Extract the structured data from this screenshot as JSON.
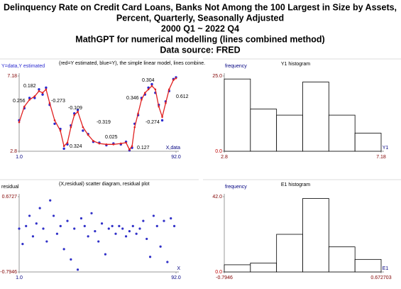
{
  "title": [
    "Delinquency Rate on Credit Card Loans, Banks Not Among the 100 Largest in Size by Assets,",
    "Percent, Quarterly, Seasonally Adjusted",
    "2000 Q1 ~ 2022 Q4",
    "MathGPT for numerical modelling (lines combined method)",
    "Data source: FRED"
  ],
  "chart_data": [
    {
      "type": "line",
      "title": "(red=Y estimated, blue=Y), the simple linear model, lines combine.",
      "ylabel": "Y=data,Y estimated",
      "xlabel": "X,data",
      "x": [
        1,
        4,
        7,
        10,
        12.5,
        14.6,
        16.6,
        18.7,
        21.6,
        24.9,
        27,
        29,
        31,
        33,
        35,
        38,
        41,
        44,
        47.5,
        51.6,
        55.7,
        60,
        63,
        65,
        66.5,
        68,
        70,
        72,
        74,
        76,
        78,
        80,
        82,
        84,
        86,
        88,
        90.5,
        92
      ],
      "series": [
        {
          "color": "#2b2bd0",
          "marker": "points",
          "values": [
            4.6,
            5.3,
            5.9,
            5.9,
            6.4,
            6.1,
            6.5,
            5.5,
            4.4,
            4.1,
            2.95,
            3.2,
            4.3,
            5.0,
            5.2,
            4.0,
            3.8,
            3.35,
            3.3,
            3.15,
            3.25,
            3.2,
            3.35,
            2.85,
            3.0,
            4.4,
            4.9,
            5.9,
            6.1,
            6.5,
            6.7,
            6.2,
            5.5,
            4.6,
            5.7,
            6.3,
            7.0,
            7.1
          ]
        },
        {
          "color": "#e02020",
          "marker": "line",
          "values": [
            4.49,
            5.4,
            5.8,
            6.0,
            6.3,
            6.2,
            6.4,
            5.6,
            4.6,
            4.0,
            3.1,
            3.3,
            4.2,
            4.9,
            5.1,
            4.2,
            3.75,
            3.4,
            3.25,
            3.2,
            3.2,
            3.25,
            3.3,
            2.9,
            3.1,
            4.2,
            5.0,
            5.8,
            6.2,
            6.4,
            6.6,
            6.4,
            5.4,
            4.8,
            5.6,
            6.4,
            6.95,
            7.05
          ]
        }
      ],
      "annotations": [
        "0.256",
        "0.182",
        "-0.273",
        "-0.109",
        "-0.319",
        "0.324",
        "0.025",
        "0.127",
        "0.346",
        "0.304",
        "-0.274",
        "0.612"
      ],
      "xlim": [
        1,
        92
      ],
      "ylim": [
        2.8,
        7.18
      ],
      "xticks": [
        {
          "value": 1,
          "label": "1.0"
        },
        {
          "value": 92,
          "label": "92.0"
        }
      ],
      "yticks": [
        2.8,
        7.18
      ]
    },
    {
      "type": "histogram",
      "title": "Y1 histogram",
      "ylabel": "frequency",
      "xlabel": "Y1",
      "color": "#ffffff",
      "bins": [
        2.8,
        3.53,
        4.26,
        4.99,
        5.72,
        6.45,
        7.18
      ],
      "values": [
        24,
        14,
        12,
        23,
        12,
        6
      ],
      "xlim": [
        2.8,
        7.18
      ],
      "ylim": [
        0,
        25
      ],
      "xticks": [
        2.8,
        7.18
      ],
      "yticks": [
        {
          "value": 0,
          "label": "0.0"
        },
        {
          "value": 25,
          "label": "25.0"
        }
      ]
    },
    {
      "type": "scatter",
      "title": "(X,residual) scatter diagram, residual plot",
      "ylabel": "residual",
      "xlabel": "X",
      "color": "#3030c8",
      "x": [
        1,
        3,
        5,
        7,
        9,
        11,
        13,
        15,
        17,
        19,
        21,
        23,
        25,
        27,
        29,
        31,
        33,
        35,
        37,
        39,
        41,
        43,
        45,
        47,
        49,
        51,
        53,
        55,
        57,
        59,
        61,
        63,
        65,
        67,
        69,
        71,
        73,
        75,
        77,
        79,
        81,
        83,
        85,
        87,
        89,
        91
      ],
      "values": [
        0.05,
        -0.25,
        0.1,
        0.3,
        -0.1,
        0.15,
        0.45,
        0.05,
        -0.2,
        0.6,
        0.3,
        -0.05,
        0.1,
        -0.35,
        0.2,
        -0.55,
        0.05,
        -0.75,
        0.25,
        0.1,
        -0.1,
        0.35,
        0.0,
        -0.2,
        0.15,
        -0.45,
        0.05,
        0.1,
        -0.05,
        0.1,
        0.05,
        -0.1,
        0.0,
        0.1,
        -0.05,
        0.05,
        0.2,
        -0.15,
        -0.5,
        0.3,
        0.1,
        -0.3,
        0.2,
        -0.6,
        0.25,
        0.1
      ],
      "xlim": [
        1,
        92
      ],
      "ylim": [
        -0.7946,
        0.6727
      ],
      "xticks": [
        {
          "value": 1,
          "label": "1.0"
        },
        {
          "value": 92,
          "label": "92.0"
        }
      ],
      "yticks": [
        -0.7946,
        0.6727
      ]
    },
    {
      "type": "histogram",
      "title": "E1 histogram",
      "ylabel": "frequency",
      "xlabel": "E1",
      "color": "#ffffff",
      "bins": [
        -0.7946,
        -0.55,
        -0.3055,
        -0.0609,
        0.1836,
        0.4282,
        0.672703
      ],
      "values": [
        4,
        5,
        21,
        41,
        14,
        7
      ],
      "xlim": [
        -0.7946,
        0.672703
      ],
      "ylim": [
        0,
        42
      ],
      "xticks": [
        -0.7946,
        0.672703
      ],
      "yticks": [
        {
          "value": 0,
          "label": "0.0"
        },
        {
          "value": 42,
          "label": "42.0"
        }
      ]
    }
  ]
}
